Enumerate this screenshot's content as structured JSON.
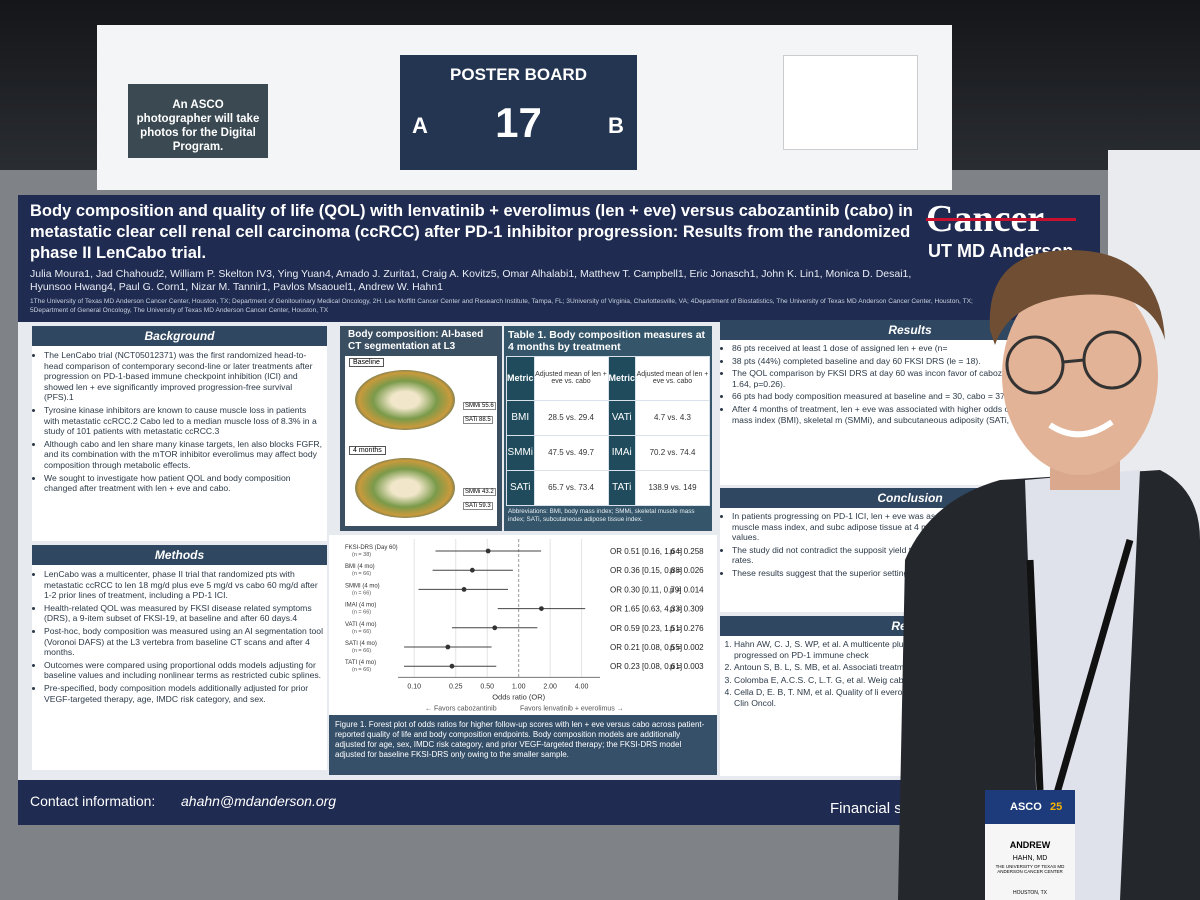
{
  "sign": {
    "note": "An ASCO photographer will take photos for the Digital Program.",
    "board_label": "POSTER BOARD",
    "board_left": "A",
    "board_number": "17",
    "board_right": "B"
  },
  "poster": {
    "title": "Body composition and quality of life (QOL) with lenvatinib + everolimus (len + eve) versus cabozantinib (cabo) in metastatic clear cell renal cell carcinoma (ccRCC) after PD-1 inhibitor progression: Results from the randomized phase II LenCabo trial.",
    "authors": "Julia Moura1, Jad Chahoud2, William P. Skelton IV3, Ying Yuan4, Amado J. Zurita1, Craig A. Kovitz5, Omar Alhalabi1, Matthew T. Campbell1, Eric Jonasch1, John K. Lin1, Monica D. Desai1, Hyunsoo Hwang4, Paul G. Corn1, Nizar M. Tannir1, Pavlos Msaouel1, Andrew W. Hahn1",
    "affiliations": "1The University of Texas MD Anderson Cancer Center, Houston, TX; Department of Genitourinary Medical Oncology, 2H. Lee Moffitt Cancer Center and Research Institute, Tampa, FL; 3University of Virginia, Charlottesville, VA; 4Department of Biostatistics, The University of Texas MD Anderson Cancer Center, Houston, TX; 5Department of General Oncology, The University of Texas MD Anderson Cancer Center, Houston, TX",
    "logo_top": "Cancer",
    "logo_bottom": "UT MD Anderson",
    "background": {
      "heading": "Background",
      "bullets": [
        "The LenCabo trial (NCT05012371) was the first randomized head-to-head comparison of contemporary second-line or later treatments after progression on PD-1-based immune checkpoint inhibition (ICI) and showed len + eve significantly improved progression-free survival (PFS).1",
        "Tyrosine kinase inhibitors are known to cause muscle loss in patients with metastatic ccRCC.2 Cabo led to a median muscle loss of 8.3% in a study of 101 patients with metastatic ccRCC.3",
        "Although cabo and len share many kinase targets, len also blocks FGFR, and its combination with the mTOR inhibitor everolimus may affect body composition through metabolic effects.",
        "We sought to investigate how patient QOL and body composition changed after treatment with len + eve and cabo."
      ]
    },
    "methods": {
      "heading": "Methods",
      "bullets": [
        "LenCabo was a multicenter, phase II trial that randomized pts with metastatic ccRCC to len 18 mg/d plus eve 5 mg/d vs cabo 60 mg/d after 1-2 prior lines of treatment, including a PD-1 ICI.",
        "Health-related QOL was measured by FKSI disease related symptoms (DRS), a 9-item subset of FKSI-19, at baseline and after 60 days.4",
        "Post-hoc, body composition was measured using an AI segmentation tool (Voronoi DAFS) at the L3 vertebra from baseline CT scans and after 4 months.",
        "Outcomes were compared using proportional odds models adjusting for baseline values and including nonlinear terms as restricted cubic splines.",
        "Pre-specified, body composition models additionally adjusted for prior VEGF-targeted therapy, age, IMDC risk category, and sex."
      ]
    },
    "ct": {
      "heading": "Body composition: AI-based CT segmentation at L3",
      "baseline": "Baseline",
      "later": "4 months",
      "callouts": [
        "SMMi 55.6",
        "SATi 88.5",
        "SMMi 43.2",
        "SATi 59.3"
      ]
    },
    "table": {
      "caption": "Table 1. Body composition measures at 4 months by treatment",
      "header": [
        "Metric",
        "Adjusted mean of len + eve vs. cabo",
        "Metric",
        "Adjusted mean of len + eve vs. cabo"
      ],
      "rows": [
        [
          "BMI",
          "28.5 vs. 29.4",
          "VATi",
          "4.7 vs. 4.3"
        ],
        [
          "SMMi",
          "47.5 vs. 49.7",
          "IMAi",
          "70.2 vs. 74.4"
        ],
        [
          "SATi",
          "65.7 vs. 73.4",
          "TATi",
          "138.9 vs. 149"
        ]
      ],
      "note": "Abbreviations: BMI, body mass index; SMMi, skeletal muscle mass index; SATi, subcutaneous adipose tissue index."
    },
    "forest": {
      "type": "forest",
      "rows": [
        {
          "label": "FKSI-DRS (Day 60)",
          "n": "(n = 38)",
          "or": 0.51,
          "lo": 0.16,
          "hi": 1.64,
          "text": "OR 0.51 [0.16, 1.64]",
          "p": "p = 0.258"
        },
        {
          "label": "BMI (4 mo)",
          "n": "(n = 66)",
          "or": 0.36,
          "lo": 0.15,
          "hi": 0.88,
          "text": "OR 0.36 [0.15, 0.88]",
          "p": "p = 0.026"
        },
        {
          "label": "SMMI (4 mo)",
          "n": "(n = 66)",
          "or": 0.3,
          "lo": 0.11,
          "hi": 0.79,
          "text": "OR 0.30 [0.11, 0.79]",
          "p": "p = 0.014"
        },
        {
          "label": "IMAI (4 mo)",
          "n": "(n = 66)",
          "or": 1.65,
          "lo": 0.63,
          "hi": 4.33,
          "text": "OR 1.65 [0.63, 4.33]",
          "p": "p = 0.309"
        },
        {
          "label": "VATI (4 mo)",
          "n": "(n = 66)",
          "or": 0.59,
          "lo": 0.23,
          "hi": 1.51,
          "text": "OR 0.59 [0.23, 1.51]",
          "p": "p = 0.276"
        },
        {
          "label": "SATI (4 mo)",
          "n": "(n = 66)",
          "or": 0.21,
          "lo": 0.08,
          "hi": 0.55,
          "text": "OR 0.21 [0.08, 0.55]",
          "p": "p = 0.002"
        },
        {
          "label": "TATI (4 mo)",
          "n": "(n = 66)",
          "or": 0.23,
          "lo": 0.08,
          "hi": 0.61,
          "text": "OR 0.23 [0.08, 0.61]",
          "p": "p = 0.003"
        }
      ],
      "xlim": [
        0.07,
        6
      ],
      "log": true,
      "xticks": [
        {
          "value": 0.1,
          "label": "0.10"
        },
        {
          "value": 0.25,
          "label": "0.25"
        },
        {
          "value": 0.5,
          "label": "0.50"
        },
        {
          "value": 1,
          "label": "1.00"
        },
        {
          "value": 2,
          "label": "2.00"
        },
        {
          "value": 4,
          "label": "4.00"
        }
      ],
      "xlabel": "Odds ratio (OR)",
      "left_note": "← Favors cabozantinib",
      "right_note": "Favors lenvatinib + everolimus →",
      "caption": "Figure 1. Forest plot of odds ratios for higher follow-up scores with len + eve versus cabo across patient-reported quality of life and body composition endpoints. Body composition models are additionally adjusted for age, sex, IMDC risk category, and prior VEGF-targeted therapy; the FKSI-DRS model adjusted for baseline FKSI-DRS only owing to the smaller sample."
    },
    "results": {
      "heading": "Results",
      "bullets": [
        "86 pts received at least 1 dose of assigned len + eve (n=",
        "38 pts (44%) completed baseline and day 60 FKSI DRS (le = 18).",
        "The QOL comparison by FKSI DRS at day 60 was incon favor of cabozantinib, 95% CI 0.16-1.64, p=0.26).",
        "66 pts had body composition measured at baseline and = 30, cabo = 37).",
        "After 4 months of treatment, len + eve was associated with higher odds of having lower body mass index (BMI), skeletal m (SMMi), and subcutaneous adiposity (SATi, Table 1 and Figure 1)"
      ]
    },
    "conclusion": {
      "heading": "Conclusion",
      "bullets": [
        "In patients progressing on PD-1 ICI, len + eve was associated w significantly lower BMI, skeletal muscle mass index, and subc adipose tissue at 4 months compared with cabo after a baseline values.",
        "The study did not contradict the supposit yield the same QOL at day 60, yet QOL c completion rates.",
        "These results suggest that the superior setting is accompanied by a more pron"
      ]
    },
    "references": {
      "heading": "Refere",
      "items": [
        "Hahn AW, C. J, S. WP, et al. A multicente plus everolimus versus cabozantinib in that progressed on PD-1 immune check",
        "Antoun S, B. L, S. MB, et al. Associati treatment with sorafenib in patients w Oncol.",
        "Colomba E, A.C.S. C, L.T. G, et al. Weig cabozantinib in metastatic renal cell c",
        "Cella D, E. B, T. NM, et al. Quality of li everolimus in patients with metastat randomized trial. J Clin Oncol."
      ]
    },
    "contact_label": "Contact information:",
    "contact_email": "ahahn@mdanderson.org",
    "financial": "Financial s"
  },
  "badge": {
    "event": "ASCO",
    "year": "25",
    "first_name": "ANDREW",
    "last_name": "HAHN, MD",
    "org": "THE UNIVERSITY OF TEXAS MD ANDERSON CANCER CENTER",
    "city": "HOUSTON, TX"
  }
}
